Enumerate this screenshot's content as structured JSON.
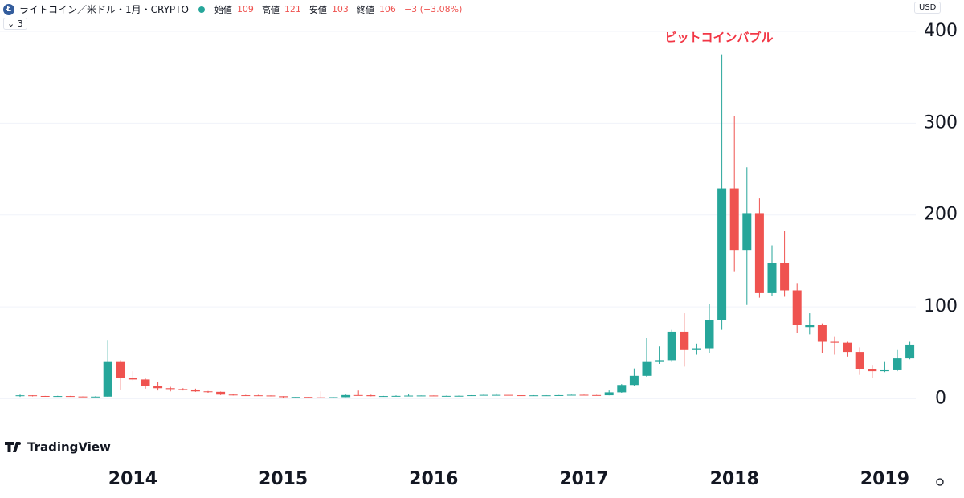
{
  "header": {
    "symbol": "ライトコイン／米ドル・1月・CRYPTO",
    "ohlc": [
      {
        "label": "始値",
        "value": 109
      },
      {
        "label": "高値",
        "value": 121
      },
      {
        "label": "安値",
        "value": 103
      },
      {
        "label": "終値",
        "value": 106
      }
    ],
    "change": "−3 (−3.08%)",
    "indicator": "3",
    "currency": "USD",
    "brand": "TradingView"
  },
  "chart_data": {
    "type": "candlestick",
    "annotation": "ビットコインバブル",
    "categories": [
      null,
      null,
      null,
      null,
      null,
      null,
      null,
      null,
      null,
      "2014",
      null,
      null,
      null,
      null,
      null,
      null,
      null,
      null,
      null,
      null,
      null,
      "2015",
      null,
      null,
      null,
      null,
      null,
      null,
      null,
      null,
      null,
      null,
      null,
      "2016",
      null,
      null,
      null,
      null,
      null,
      null,
      null,
      null,
      null,
      null,
      null,
      "2017",
      null,
      null,
      null,
      null,
      null,
      null,
      null,
      null,
      null,
      null,
      null,
      "2018",
      null,
      null,
      null,
      null,
      null,
      null,
      null,
      null,
      null,
      null,
      null,
      "2019",
      null,
      null
    ],
    "open": [
      3.5,
      3.7,
      3.0,
      2.6,
      2.9,
      2.4,
      2.2,
      2.3,
      40,
      23,
      21,
      14,
      11.5,
      10.5,
      10,
      8,
      7.5,
      4.5,
      3.8,
      3.7,
      3.5,
      2.7,
      1.7,
      1.9,
      1.5,
      1.4,
      1.7,
      4.0,
      3.8,
      2.8,
      2.9,
      3.1,
      3.4,
      3.5,
      3.0,
      3.1,
      3.2,
      3.8,
      4.2,
      4.2,
      3.8,
      3.6,
      3.7,
      3.7,
      3.9,
      4.3,
      4.0,
      3.8,
      7,
      15,
      25,
      40,
      42,
      73,
      53,
      55,
      86,
      229,
      162,
      202,
      115,
      148,
      118,
      78,
      80,
      62,
      61,
      51,
      32,
      30,
      31,
      44
    ],
    "high": [
      4.5,
      3.8,
      3.1,
      3.2,
      3.1,
      2.6,
      2.6,
      64,
      42,
      30,
      22,
      18,
      13,
      11.5,
      11,
      8.5,
      7.8,
      5,
      4.2,
      4.2,
      3.6,
      2.8,
      2.0,
      2.0,
      8,
      1.8,
      4.5,
      8.9,
      4.4,
      3.1,
      3.6,
      4.8,
      3.6,
      3.6,
      3.3,
      3.4,
      3.9,
      4.6,
      5.8,
      4.3,
      3.9,
      3.9,
      3.9,
      4.1,
      4.5,
      4.5,
      4.2,
      9,
      16,
      33,
      66,
      57,
      75,
      93,
      60,
      103,
      375,
      308,
      252,
      218,
      167,
      183,
      126,
      93,
      82,
      68,
      62,
      56,
      36,
      40,
      53,
      62
    ],
    "low": [
      2.0,
      2.5,
      2.2,
      2.3,
      2.3,
      2.1,
      1.9,
      2.1,
      10,
      20,
      11,
      9,
      8,
      9,
      7.5,
      6.5,
      4,
      3.5,
      3.5,
      3.4,
      2.5,
      1.2,
      1.5,
      1.5,
      1.3,
      1.3,
      1.6,
      3.5,
      2.6,
      2.6,
      2.8,
      2.5,
      3.2,
      2.9,
      2.9,
      3.0,
      3.1,
      3.7,
      4.0,
      3.7,
      3.5,
      3.5,
      3.6,
      3.6,
      3.8,
      3.7,
      3.6,
      3.7,
      6.5,
      14,
      24,
      38,
      40,
      35,
      48,
      50,
      75,
      138,
      102,
      110,
      112,
      111,
      72,
      70,
      50,
      48,
      46,
      26,
      23,
      29,
      30,
      43
    ],
    "close": [
      3.7,
      3.0,
      2.6,
      2.9,
      2.4,
      2.2,
      2.3,
      40,
      23,
      21,
      14,
      11.5,
      10.5,
      10,
      8,
      7.5,
      4.5,
      3.8,
      3.7,
      3.5,
      2.7,
      1.7,
      1.9,
      1.5,
      1.4,
      1.7,
      4.0,
      3.8,
      2.8,
      2.9,
      3.1,
      3.4,
      3.5,
      3.0,
      3.1,
      3.2,
      3.8,
      4.2,
      4.2,
      3.8,
      3.6,
      3.7,
      3.7,
      3.9,
      4.3,
      4.0,
      3.8,
      7,
      15,
      25,
      40,
      42,
      73,
      53,
      55,
      86,
      229,
      162,
      202,
      115,
      148,
      118,
      80,
      80,
      62,
      61,
      51,
      32,
      30,
      31,
      44,
      59
    ],
    "up_color": "#26a69a",
    "down_color": "#ef5350",
    "annotation_color": "#f23645",
    "ylim": [
      -25,
      421
    ],
    "yticks": [
      0,
      100,
      200,
      300,
      400
    ],
    "grid": true
  }
}
